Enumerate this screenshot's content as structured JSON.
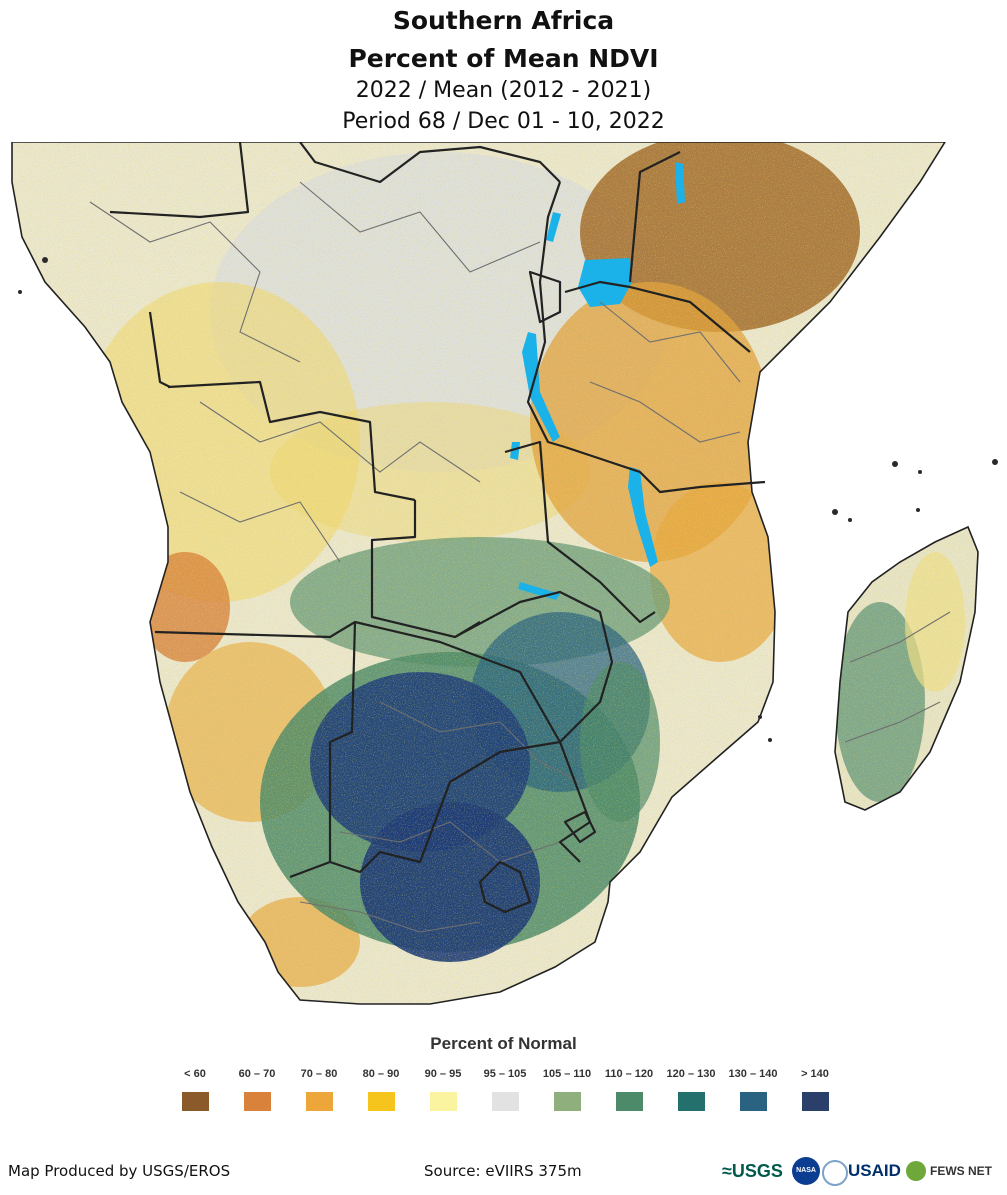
{
  "header": {
    "region": "Southern Africa",
    "product": "Percent of Mean NDVI",
    "comparison": "2022 / Mean (2012 - 2021)",
    "period": "Period 68 / Dec 01 - 10, 2022"
  },
  "legend": {
    "title": "Percent of Normal",
    "classes": [
      {
        "label": "< 60",
        "color": "#8b5a2b"
      },
      {
        "label": "60 – 70",
        "color": "#d9823b"
      },
      {
        "label": "70 – 80",
        "color": "#eda63a"
      },
      {
        "label": "80 – 90",
        "color": "#f5c51e"
      },
      {
        "label": "90 – 95",
        "color": "#faf3a0"
      },
      {
        "label": "95 – 105",
        "color": "#e2e2e2"
      },
      {
        "label": "105 – 110",
        "color": "#8faf7c"
      },
      {
        "label": "110 – 120",
        "color": "#4d8a6a"
      },
      {
        "label": "120 – 130",
        "color": "#24706d"
      },
      {
        "label": "130 – 140",
        "color": "#2a6382"
      },
      {
        "label": "> 140",
        "color": "#2b3f6b"
      }
    ]
  },
  "footer": {
    "credit": "Map Produced by USGS/EROS",
    "source": "Source: eVIIRS 375m"
  },
  "logos": {
    "usgs": "≈USGS",
    "nasa": "NASA",
    "usaid": "USAID",
    "fewsnet": "FEWS NET"
  },
  "colors": {
    "water": "#1ab2e8",
    "boundary": "#222222",
    "admin": "#6f6f6f",
    "ocean": "#ffffff"
  }
}
